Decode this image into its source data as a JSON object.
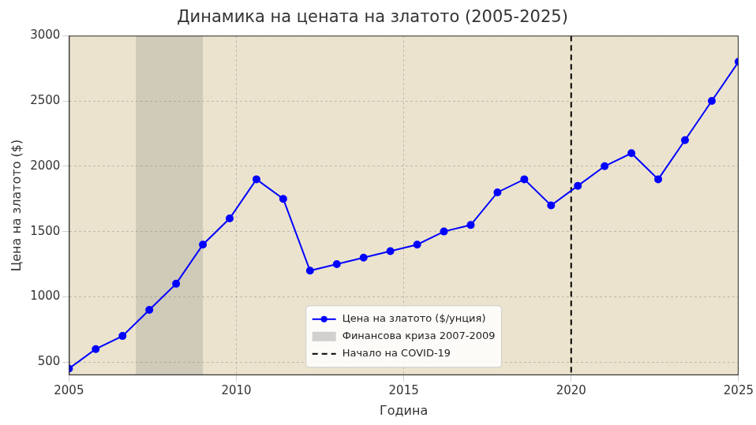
{
  "chart_data": {
    "type": "line",
    "title": "Динамика на цената на златото (2005-2025)",
    "x_label": "Година",
    "y_label": "Цена на златото ($)",
    "x": [
      2005,
      2005.8,
      2006.6,
      2007.4,
      2008.2,
      2009,
      2009.8,
      2010.6,
      2011.4,
      2012.2,
      2013,
      2013.8,
      2014.6,
      2015.4,
      2016.2,
      2017,
      2017.8,
      2018.6,
      2019.4,
      2020.2,
      2021,
      2021.8,
      2022.6,
      2023.4,
      2024.2,
      2025
    ],
    "series": [
      {
        "name": "Цена на златото ($/унция)",
        "color": "#0000ff",
        "marker": "circle",
        "line_style": "solid",
        "values": [
          450,
          600,
          700,
          900,
          1100,
          1400,
          1600,
          1900,
          1750,
          1200,
          1250,
          1300,
          1350,
          1400,
          1500,
          1550,
          1800,
          1900,
          1700,
          1850,
          2000,
          2100,
          1900,
          2200,
          2500,
          2800
        ]
      }
    ],
    "annotations": [
      {
        "type": "span",
        "x": [
          2007,
          2009
        ],
        "label": "Финансова криза 2007-2009",
        "color": "#808080"
      },
      {
        "type": "vline",
        "x": 2020,
        "label": "Начало на COVID-19",
        "color": "#000000",
        "line_style": "dashed"
      }
    ],
    "xlim": [
      2005,
      2025
    ],
    "xticks": [
      2005,
      2010,
      2015,
      2020,
      2025
    ],
    "ylim": [
      400,
      3000
    ],
    "yticks": [
      500,
      1000,
      1500,
      2000,
      2500,
      3000
    ],
    "grid": true,
    "legend": "lower center"
  }
}
